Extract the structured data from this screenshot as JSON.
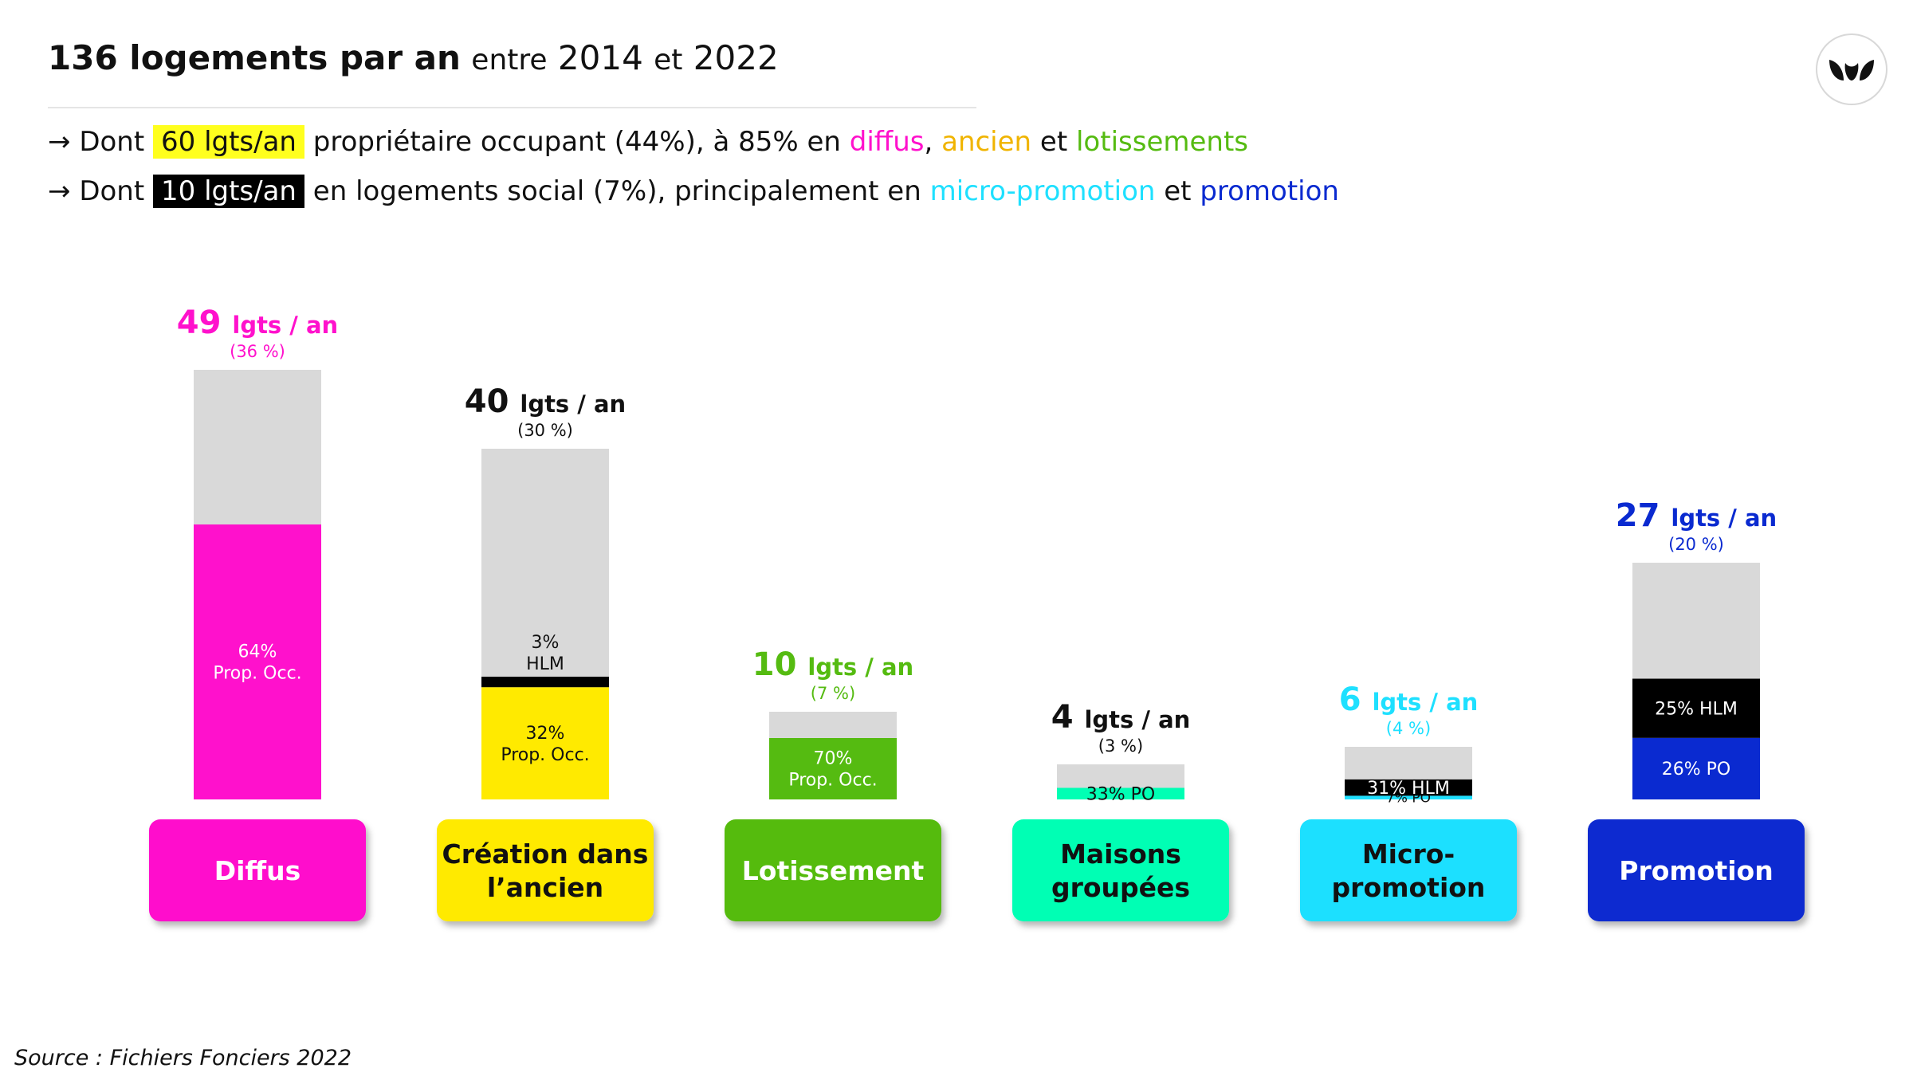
{
  "title": {
    "bold": "136 logements par an",
    "w1": "entre",
    "y1": "2014",
    "w2": "et",
    "y2": "2022"
  },
  "bullets": [
    {
      "arrow": "→",
      "prefix": "Dont",
      "highlight": "60 lgts/an",
      "middle": "propriétaire occupant (44%), à 85% en",
      "k1": "diffus",
      "sep": ",",
      "k2": "ancien",
      "join": "et",
      "k3": "lotissements"
    },
    {
      "arrow": "→",
      "prefix": "Dont",
      "highlight": "10 lgts/an",
      "middle": "en logements social (7%), principalement en",
      "k1": "micro-promotion",
      "join": "et",
      "k2": "promotion"
    }
  ],
  "keyword_colors": {
    "diffus": "#ff11cc",
    "ancien": "#f0b400",
    "lotissements": "#55bb11",
    "micro": "#1ee0ff",
    "promotion": "#0a2ad0"
  },
  "logo_icon": "leaf-pair-logo-icon",
  "source": "Source : Fichiers Fonciers 2022",
  "chart_data": {
    "type": "bar",
    "categories": [
      {
        "name": "Diffus",
        "lines": [
          "Diffus"
        ],
        "total": 49,
        "unit": "lgts / an",
        "share": "(36 %)",
        "color": "#ff11cc",
        "text_color": "#ff11cc",
        "label_text_color": "#ffffff",
        "segments": [
          {
            "label": [
              "64%",
              "Prop. Occ."
            ],
            "pct": 64,
            "color": "#ff11cc",
            "text_color": "#ffffff"
          }
        ]
      },
      {
        "name": "Création dans l’ancien",
        "lines": [
          "Création dans",
          "l’ancien"
        ],
        "total": 40,
        "unit": "lgts / an",
        "share": "(30 %)",
        "color": "#ffea00",
        "text_color": "#111111",
        "label_text_color": "#111111",
        "segments": [
          {
            "label": [
              "32%",
              "Prop. Occ."
            ],
            "pct": 32,
            "color": "#ffea00",
            "text_color": "#111111"
          },
          {
            "label": [
              "3%",
              "HLM"
            ],
            "pct": 3,
            "color": "#000000",
            "text_color": "#111111",
            "label_outside": true
          }
        ]
      },
      {
        "name": "Lotissement",
        "lines": [
          "Lotissement"
        ],
        "total": 10,
        "unit": "lgts / an",
        "share": "(7 %)",
        "color": "#55bb11",
        "text_color": "#55bb11",
        "label_text_color": "#ffffff",
        "segments": [
          {
            "label": [
              "70%",
              "Prop. Occ."
            ],
            "pct": 70,
            "color": "#55bb11",
            "text_color": "#ffffff"
          }
        ]
      },
      {
        "name": "Maisons groupées",
        "lines": [
          "Maisons",
          "groupées"
        ],
        "total": 4,
        "unit": "lgts / an",
        "share": "(3 %)",
        "color": "#00ffb4",
        "text_color": "#111111",
        "label_text_color": "#111111",
        "segments": [
          {
            "label": [
              "33% PO"
            ],
            "pct": 33,
            "color": "#00ffb4",
            "text_color": "#111111"
          }
        ]
      },
      {
        "name": "Micro-promotion",
        "lines": [
          "Micro-",
          "promotion"
        ],
        "total": 6,
        "unit": "lgts / an",
        "share": "(4 %)",
        "color": "#1ee0ff",
        "text_color": "#1ee0ff",
        "label_text_color": "#111111",
        "segments": [
          {
            "label": [
              "7% PO"
            ],
            "pct": 7,
            "color": "#1ee0ff",
            "text_color": "#111111",
            "small": true
          },
          {
            "label": [
              "31% HLM"
            ],
            "pct": 31,
            "color": "#000000",
            "text_color": "#ffffff"
          }
        ]
      },
      {
        "name": "Promotion",
        "lines": [
          "Promotion"
        ],
        "total": 27,
        "unit": "lgts / an",
        "share": "(20 %)",
        "color": "#0a2ad0",
        "text_color": "#0a2ad0",
        "label_text_color": "#ffffff",
        "segments": [
          {
            "label": [
              "26% PO"
            ],
            "pct": 26,
            "color": "#0a2ad0",
            "text_color": "#ffffff"
          },
          {
            "label": [
              "25% HLM"
            ],
            "pct": 25,
            "color": "#000000",
            "text_color": "#ffffff"
          }
        ]
      }
    ],
    "remainder_color": "#d9d9d9"
  }
}
